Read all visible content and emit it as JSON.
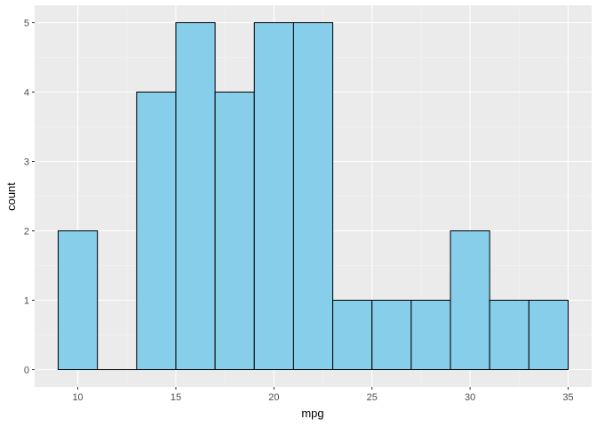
{
  "chart_data": {
    "type": "bar",
    "subtype": "histogram",
    "xlabel": "mpg",
    "ylabel": "count",
    "bins": [
      {
        "x0": 9,
        "x1": 11,
        "count": 2
      },
      {
        "x0": 11,
        "x1": 13,
        "count": 0
      },
      {
        "x0": 13,
        "x1": 15,
        "count": 4
      },
      {
        "x0": 15,
        "x1": 17,
        "count": 5
      },
      {
        "x0": 17,
        "x1": 19,
        "count": 4
      },
      {
        "x0": 19,
        "x1": 21,
        "count": 5
      },
      {
        "x0": 21,
        "x1": 23,
        "count": 5
      },
      {
        "x0": 23,
        "x1": 25,
        "count": 1
      },
      {
        "x0": 25,
        "x1": 27,
        "count": 1
      },
      {
        "x0": 27,
        "x1": 29,
        "count": 1
      },
      {
        "x0": 29,
        "x1": 31,
        "count": 2
      },
      {
        "x0": 31,
        "x1": 33,
        "count": 1
      },
      {
        "x0": 33,
        "x1": 35,
        "count": 1
      }
    ],
    "xlim": [
      7.8,
      36.2
    ],
    "ylim": [
      -0.25,
      5.25
    ],
    "x_ticks": [
      10,
      15,
      20,
      25,
      30,
      35
    ],
    "y_ticks": [
      0,
      1,
      2,
      3,
      4,
      5
    ],
    "grid": true,
    "colors": {
      "bar_fill": "#87CEEB",
      "bar_stroke": "#000000",
      "panel_background": "#EBEBEB",
      "grid_major": "#FFFFFF",
      "grid_minor": "#F5F5F5"
    }
  }
}
